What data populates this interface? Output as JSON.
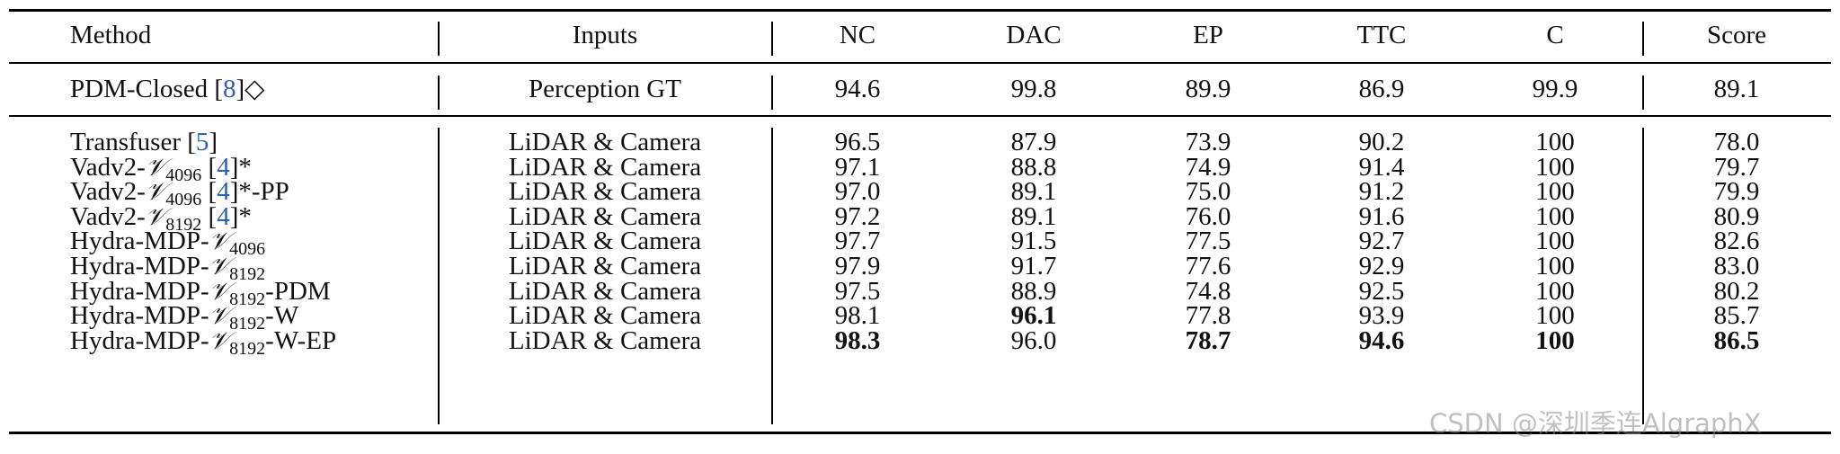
{
  "columns": [
    "Method",
    "Inputs",
    "NC",
    "DAC",
    "EP",
    "TTC",
    "C",
    "Score"
  ],
  "baseline": {
    "method": "PDM-Closed",
    "cite": "8",
    "suffix": "◇",
    "inputs": "Perception GT",
    "values": [
      "94.6",
      "99.8",
      "89.9",
      "86.9",
      "99.9",
      "89.1"
    ]
  },
  "rows": [
    {
      "pre": "Transfuser",
      "sym": "",
      "sub": "",
      "cite": "5",
      "post": "",
      "inputs": "LiDAR & Camera",
      "values": [
        "96.5",
        "87.9",
        "73.9",
        "90.2",
        "100",
        "78.0"
      ],
      "bold": []
    },
    {
      "pre": "Vadv2-",
      "sym": "𝒱",
      "sub": "4096",
      "cite": "4",
      "post": "*",
      "inputs": "LiDAR & Camera",
      "values": [
        "97.1",
        "88.8",
        "74.9",
        "91.4",
        "100",
        "79.7"
      ],
      "bold": []
    },
    {
      "pre": "Vadv2-",
      "sym": "𝒱",
      "sub": "4096",
      "cite": "4",
      "post": "*-PP",
      "inputs": "LiDAR & Camera",
      "values": [
        "97.0",
        "89.1",
        "75.0",
        "91.2",
        "100",
        "79.9"
      ],
      "bold": []
    },
    {
      "pre": "Vadv2-",
      "sym": "𝒱",
      "sub": "8192",
      "cite": "4",
      "post": "*",
      "inputs": "LiDAR & Camera",
      "values": [
        "97.2",
        "89.1",
        "76.0",
        "91.6",
        "100",
        "80.9"
      ],
      "bold": []
    },
    {
      "pre": "Hydra-MDP-",
      "sym": "𝒱",
      "sub": "4096",
      "cite": "",
      "post": "",
      "inputs": "LiDAR & Camera",
      "values": [
        "97.7",
        "91.5",
        "77.5",
        "92.7",
        "100",
        "82.6"
      ],
      "bold": []
    },
    {
      "pre": "Hydra-MDP-",
      "sym": "𝒱",
      "sub": "8192",
      "cite": "",
      "post": "",
      "inputs": "LiDAR & Camera",
      "values": [
        "97.9",
        "91.7",
        "77.6",
        "92.9",
        "100",
        "83.0"
      ],
      "bold": []
    },
    {
      "pre": "Hydra-MDP-",
      "sym": "𝒱",
      "sub": "8192",
      "cite": "",
      "post": "-PDM",
      "inputs": "LiDAR & Camera",
      "values": [
        "97.5",
        "88.9",
        "74.8",
        "92.5",
        "100",
        "80.2"
      ],
      "bold": []
    },
    {
      "pre": "Hydra-MDP-",
      "sym": "𝒱",
      "sub": "8192",
      "cite": "",
      "post": "-W",
      "inputs": "LiDAR & Camera",
      "values": [
        "98.1",
        "96.1",
        "77.8",
        "93.9",
        "100",
        "85.7"
      ],
      "bold": [
        1
      ]
    },
    {
      "pre": "Hydra-MDP-",
      "sym": "𝒱",
      "sub": "8192",
      "cite": "",
      "post": "-W-EP",
      "inputs": "LiDAR & Camera",
      "values": [
        "98.3",
        "96.0",
        "78.7",
        "94.6",
        "100",
        "86.5"
      ],
      "bold": [
        0,
        2,
        3,
        4,
        5
      ]
    }
  ],
  "watermark": "CSDN @深圳季连AlgraphX"
}
